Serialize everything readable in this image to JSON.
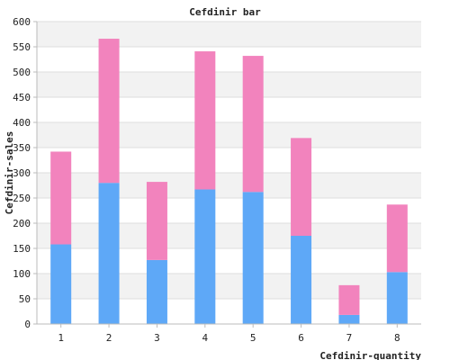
{
  "chart_data": {
    "type": "bar",
    "stacked": true,
    "title": "Cefdinir bar",
    "xlabel": "Cefdinir-quantity",
    "ylabel": "Cefdinir-sales",
    "categories": [
      "1",
      "2",
      "3",
      "4",
      "5",
      "6",
      "7",
      "8"
    ],
    "ylim": [
      0,
      600
    ],
    "yticks": [
      0,
      50,
      100,
      150,
      200,
      250,
      300,
      350,
      400,
      450,
      500,
      550,
      600
    ],
    "grid": true,
    "legend": "none",
    "series": [
      {
        "color": "#5ea8f7",
        "values": [
          158,
          280,
          127,
          267,
          262,
          175,
          18,
          103
        ]
      },
      {
        "color": "#f283bd",
        "values": [
          184,
          286,
          155,
          274,
          270,
          194,
          59,
          134
        ]
      }
    ],
    "colors": {
      "band": "#f2f2f2",
      "gridline": "#dddddd",
      "axis": "#bbbbbb",
      "text": "#222222"
    }
  }
}
